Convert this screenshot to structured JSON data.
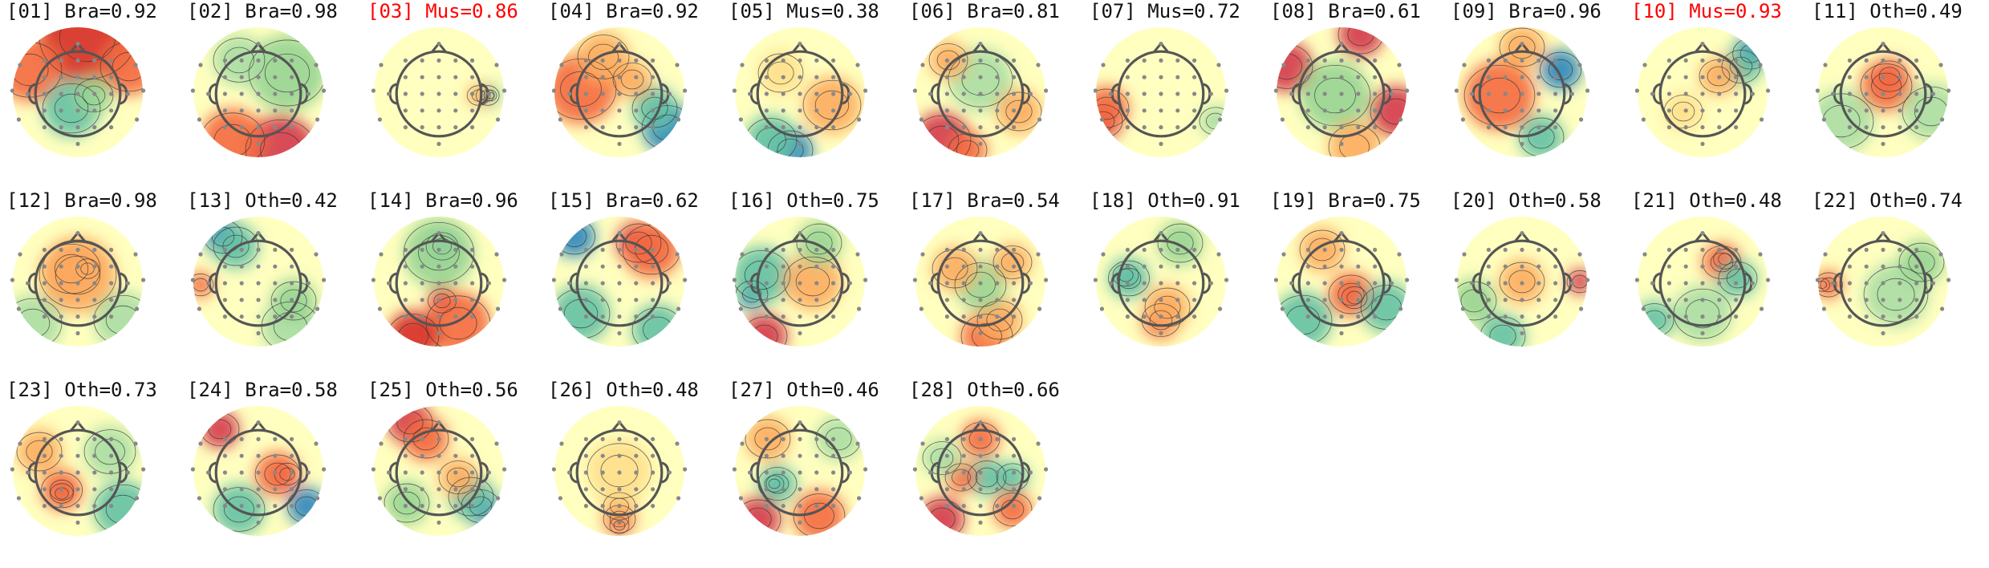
{
  "figure": {
    "components": [
      {
        "label": "[01] Bra=0.92",
        "rejected": false,
        "blobs": [
          [
            "#d73027",
            0.15,
            -0.85,
            0.75
          ],
          [
            "#f46d43",
            -0.75,
            -0.35,
            0.5
          ],
          [
            "#f46d43",
            0.8,
            -0.4,
            0.45
          ],
          [
            "#66c2a5",
            -0.1,
            0.25,
            0.45
          ],
          [
            "#99d594",
            0.25,
            0.05,
            0.3
          ]
        ]
      },
      {
        "label": "[02] Bra=0.98",
        "rejected": false,
        "blobs": [
          [
            "#d53e4f",
            0.35,
            0.9,
            0.55
          ],
          [
            "#f46d43",
            -0.4,
            0.75,
            0.5
          ],
          [
            "#99d594",
            0.45,
            -0.3,
            0.6
          ],
          [
            "#abdda4",
            -0.3,
            -0.5,
            0.4
          ]
        ]
      },
      {
        "label": "[03] Mus=0.86",
        "rejected": true,
        "blobs": [
          [
            "#3288bd",
            0.8,
            0.05,
            0.1
          ],
          [
            "#66c2a5",
            0.76,
            0.05,
            0.18
          ],
          [
            "#fdae61",
            0.62,
            0.05,
            0.18
          ]
        ]
      },
      {
        "label": "[04] Bra=0.92",
        "rejected": false,
        "blobs": [
          [
            "#f46d43",
            -0.6,
            -0.05,
            0.55
          ],
          [
            "#fdae61",
            -0.25,
            -0.55,
            0.4
          ],
          [
            "#3288bd",
            0.75,
            0.55,
            0.4
          ],
          [
            "#66c2a5",
            0.55,
            0.25,
            0.35
          ],
          [
            "#fdae61",
            0.2,
            -0.2,
            0.3
          ]
        ]
      },
      {
        "label": "[05] Mus=0.38",
        "rejected": false,
        "blobs": [
          [
            "#3288bd",
            -0.15,
            0.9,
            0.35
          ],
          [
            "#66c2a5",
            -0.45,
            0.75,
            0.4
          ],
          [
            "#fdae61",
            0.5,
            0.2,
            0.45
          ],
          [
            "#fee08b",
            -0.3,
            -0.3,
            0.35
          ]
        ]
      },
      {
        "label": "[06] Bra=0.81",
        "rejected": false,
        "blobs": [
          [
            "#d53e4f",
            -0.6,
            0.75,
            0.45
          ],
          [
            "#f46d43",
            -0.2,
            0.9,
            0.3
          ],
          [
            "#abdda4",
            0.0,
            -0.2,
            0.5
          ],
          [
            "#fdae61",
            0.6,
            0.3,
            0.35
          ],
          [
            "#fdae61",
            -0.5,
            -0.5,
            0.3
          ]
        ]
      },
      {
        "label": "[07] Mus=0.72",
        "rejected": false,
        "blobs": [
          [
            "#d53e4f",
            -0.9,
            0.45,
            0.3
          ],
          [
            "#f46d43",
            -0.85,
            0.25,
            0.35
          ],
          [
            "#abdda4",
            0.85,
            0.45,
            0.25
          ]
        ]
      },
      {
        "label": "[08] Bra=0.61",
        "rejected": false,
        "blobs": [
          [
            "#d53e4f",
            -0.85,
            -0.4,
            0.4
          ],
          [
            "#d53e4f",
            0.85,
            0.3,
            0.4
          ],
          [
            "#d53e4f",
            0.3,
            -0.9,
            0.35
          ],
          [
            "#99d594",
            -0.1,
            0.05,
            0.55
          ],
          [
            "#fdae61",
            0.2,
            0.85,
            0.4
          ]
        ]
      },
      {
        "label": "[09] Bra=0.96",
        "rejected": false,
        "blobs": [
          [
            "#f46d43",
            -0.35,
            0.05,
            0.55
          ],
          [
            "#3288bd",
            0.6,
            -0.35,
            0.32
          ],
          [
            "#66c2a5",
            0.3,
            0.7,
            0.35
          ],
          [
            "#fdae61",
            0.0,
            -0.7,
            0.35
          ]
        ]
      },
      {
        "label": "[10] Mus=0.93",
        "rejected": true,
        "blobs": [
          [
            "#3288bd",
            0.75,
            -0.6,
            0.28
          ],
          [
            "#66c2a5",
            0.6,
            -0.4,
            0.3
          ],
          [
            "#fdae61",
            0.25,
            -0.25,
            0.3
          ],
          [
            "#fee08b",
            -0.3,
            0.3,
            0.3
          ]
        ]
      },
      {
        "label": "[11] Oth=0.49",
        "rejected": false,
        "blobs": [
          [
            "#d53e4f",
            0.1,
            -0.25,
            0.28
          ],
          [
            "#f46d43",
            0.05,
            -0.1,
            0.4
          ],
          [
            "#abdda4",
            -0.65,
            0.45,
            0.5
          ],
          [
            "#abdda4",
            0.75,
            0.3,
            0.45
          ]
        ]
      },
      {
        "label": "[12] Bra=0.98",
        "rejected": false,
        "blobs": [
          [
            "#d53e4f",
            0.15,
            -0.2,
            0.18
          ],
          [
            "#f46d43",
            -0.1,
            -0.2,
            0.45
          ],
          [
            "#fdae61",
            0.0,
            -0.1,
            0.6
          ],
          [
            "#abdda4",
            -0.7,
            0.65,
            0.45
          ],
          [
            "#abdda4",
            0.7,
            0.6,
            0.45
          ]
        ]
      },
      {
        "label": "[13] Oth=0.42",
        "rejected": false,
        "blobs": [
          [
            "#3288bd",
            -0.55,
            -0.7,
            0.3
          ],
          [
            "#66c2a5",
            -0.35,
            -0.55,
            0.35
          ],
          [
            "#f46d43",
            -0.9,
            0.05,
            0.2
          ],
          [
            "#abdda4",
            0.5,
            0.7,
            0.45
          ],
          [
            "#99d594",
            0.55,
            0.3,
            0.35
          ]
        ]
      },
      {
        "label": "[14] Bra=0.96",
        "rejected": false,
        "blobs": [
          [
            "#3288bd",
            0.05,
            -0.55,
            0.25
          ],
          [
            "#99d594",
            0.0,
            -0.45,
            0.55
          ],
          [
            "#d53e4f",
            0.05,
            0.3,
            0.22
          ],
          [
            "#f46d43",
            0.3,
            0.65,
            0.5
          ],
          [
            "#d73027",
            -0.4,
            0.85,
            0.4
          ]
        ]
      },
      {
        "label": "[15] Bra=0.62",
        "rejected": false,
        "blobs": [
          [
            "#d53e4f",
            0.3,
            -0.6,
            0.35
          ],
          [
            "#f46d43",
            0.5,
            -0.5,
            0.45
          ],
          [
            "#3288bd",
            -0.7,
            -0.7,
            0.32
          ],
          [
            "#66c2a5",
            -0.6,
            0.5,
            0.45
          ],
          [
            "#66c2a5",
            0.6,
            0.75,
            0.4
          ]
        ]
      },
      {
        "label": "[16] Oth=0.75",
        "rejected": false,
        "blobs": [
          [
            "#3288bd",
            -0.75,
            0.2,
            0.25
          ],
          [
            "#66c2a5",
            -0.6,
            -0.1,
            0.45
          ],
          [
            "#d53e4f",
            -0.55,
            0.85,
            0.35
          ],
          [
            "#fdae61",
            0.2,
            0.0,
            0.45
          ],
          [
            "#99d594",
            0.3,
            -0.6,
            0.35
          ]
        ]
      },
      {
        "label": "[17] Bra=0.54",
        "rejected": false,
        "blobs": [
          [
            "#f46d43",
            0.1,
            0.85,
            0.4
          ],
          [
            "#fdae61",
            0.3,
            0.6,
            0.35
          ],
          [
            "#99d594",
            0.0,
            0.05,
            0.4
          ],
          [
            "#fdae61",
            -0.4,
            -0.2,
            0.35
          ],
          [
            "#fdae61",
            0.5,
            -0.3,
            0.3
          ]
        ]
      },
      {
        "label": "[18] Oth=0.91",
        "rejected": false,
        "blobs": [
          [
            "#3288bd",
            -0.55,
            -0.1,
            0.2
          ],
          [
            "#66c2a5",
            -0.5,
            -0.05,
            0.32
          ],
          [
            "#f46d43",
            0.0,
            0.6,
            0.3
          ],
          [
            "#fdae61",
            0.1,
            0.4,
            0.35
          ],
          [
            "#99d594",
            0.3,
            -0.6,
            0.35
          ]
        ]
      },
      {
        "label": "[19] Bra=0.75",
        "rejected": false,
        "blobs": [
          [
            "#d53e4f",
            0.2,
            0.25,
            0.2
          ],
          [
            "#f46d43",
            0.15,
            0.2,
            0.35
          ],
          [
            "#66c2a5",
            -0.6,
            0.6,
            0.45
          ],
          [
            "#66c2a5",
            0.7,
            0.4,
            0.4
          ],
          [
            "#fdae61",
            -0.3,
            -0.5,
            0.35
          ]
        ]
      },
      {
        "label": "[20] Oth=0.58",
        "rejected": false,
        "blobs": [
          [
            "#d53e4f",
            0.9,
            0.0,
            0.2
          ],
          [
            "#fdae61",
            0.0,
            0.0,
            0.35
          ],
          [
            "#99d594",
            -0.75,
            0.3,
            0.35
          ],
          [
            "#66c2a5",
            -0.3,
            0.85,
            0.35
          ]
        ]
      },
      {
        "label": "[21] Oth=0.48",
        "rejected": false,
        "blobs": [
          [
            "#d53e4f",
            0.35,
            -0.35,
            0.18
          ],
          [
            "#f46d43",
            0.3,
            -0.3,
            0.3
          ],
          [
            "#66c2a5",
            0.55,
            -0.05,
            0.3
          ],
          [
            "#66c2a5",
            -0.75,
            0.6,
            0.3
          ],
          [
            "#abdda4",
            0.0,
            0.5,
            0.45
          ]
        ]
      },
      {
        "label": "[22] Oth=0.74",
        "rejected": false,
        "blobs": [
          [
            "#d53e4f",
            -0.95,
            0.05,
            0.12
          ],
          [
            "#f46d43",
            -0.85,
            0.05,
            0.22
          ],
          [
            "#abdda4",
            0.2,
            0.2,
            0.5
          ],
          [
            "#99d594",
            0.6,
            -0.3,
            0.35
          ]
        ]
      },
      {
        "label": "[23] Oth=0.73",
        "rejected": false,
        "blobs": [
          [
            "#d53e4f",
            -0.25,
            0.35,
            0.18
          ],
          [
            "#f46d43",
            -0.25,
            0.3,
            0.32
          ],
          [
            "#66c2a5",
            0.7,
            0.6,
            0.45
          ],
          [
            "#abdda4",
            0.5,
            -0.3,
            0.4
          ],
          [
            "#fdae61",
            -0.6,
            -0.3,
            0.35
          ]
        ]
      },
      {
        "label": "[24] Bra=0.58",
        "rejected": false,
        "blobs": [
          [
            "#d53e4f",
            0.45,
            0.05,
            0.2
          ],
          [
            "#f46d43",
            0.3,
            0.05,
            0.35
          ],
          [
            "#d53e4f",
            -0.6,
            -0.65,
            0.3
          ],
          [
            "#3288bd",
            0.75,
            0.55,
            0.3
          ],
          [
            "#66c2a5",
            -0.3,
            0.6,
            0.4
          ]
        ]
      },
      {
        "label": "[25] Oth=0.56",
        "rejected": false,
        "blobs": [
          [
            "#d53e4f",
            -0.45,
            -0.75,
            0.35
          ],
          [
            "#f46d43",
            -0.2,
            -0.5,
            0.35
          ],
          [
            "#3288bd",
            0.65,
            0.55,
            0.3
          ],
          [
            "#66c2a5",
            0.5,
            0.4,
            0.35
          ],
          [
            "#fdae61",
            0.3,
            0.1,
            0.3
          ],
          [
            "#99d594",
            -0.5,
            0.5,
            0.35
          ]
        ]
      },
      {
        "label": "[26] Oth=0.48",
        "rejected": false,
        "blobs": [
          [
            "#d53e4f",
            0.0,
            0.85,
            0.15
          ],
          [
            "#f46d43",
            0.0,
            0.75,
            0.25
          ],
          [
            "#fdae61",
            0.0,
            0.55,
            0.25
          ],
          [
            "#fee08b",
            0.0,
            0.0,
            0.5
          ]
        ]
      },
      {
        "label": "[27] Oth=0.46",
        "rejected": false,
        "blobs": [
          [
            "#3288bd",
            -0.4,
            0.2,
            0.15
          ],
          [
            "#66c2a5",
            -0.35,
            0.2,
            0.3
          ],
          [
            "#d53e4f",
            -0.65,
            0.75,
            0.35
          ],
          [
            "#f46d43",
            0.3,
            0.7,
            0.4
          ],
          [
            "#abdda4",
            0.6,
            -0.5,
            0.35
          ],
          [
            "#fdae61",
            -0.5,
            -0.5,
            0.35
          ]
        ]
      },
      {
        "label": "[28] Oth=0.66",
        "rejected": false,
        "blobs": [
          [
            "#f46d43",
            0.0,
            -0.5,
            0.3
          ],
          [
            "#66c2a5",
            0.1,
            0.1,
            0.3
          ],
          [
            "#f46d43",
            -0.3,
            0.1,
            0.25
          ],
          [
            "#66c2a5",
            0.5,
            0.1,
            0.25
          ],
          [
            "#d53e4f",
            -0.6,
            0.75,
            0.35
          ],
          [
            "#f46d43",
            0.5,
            0.6,
            0.3
          ],
          [
            "#abdda4",
            -0.6,
            -0.2,
            0.3
          ]
        ]
      }
    ],
    "colors": {
      "background_field": "#ffffbf",
      "rejected_label": "#ff0000",
      "normal_label": "#111111",
      "head_outline": "#555555",
      "sensor_dot": "#888888",
      "contour": "#333333"
    }
  }
}
